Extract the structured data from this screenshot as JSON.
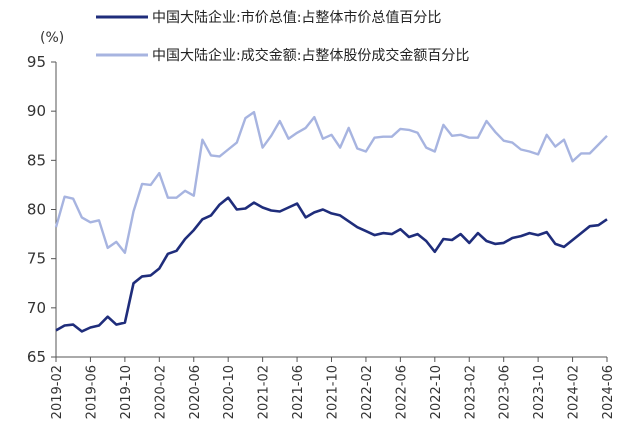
{
  "chart_data": {
    "type": "line",
    "y_unit_label": "(%)",
    "ylim": [
      65,
      95
    ],
    "y_ticks": [
      65,
      70,
      75,
      80,
      85,
      90,
      95
    ],
    "grid": false,
    "legend_position": "top-left",
    "x_start": "2019-02",
    "x_end": "2024-06",
    "x_tick_labels": [
      "2019-02",
      "2019-06",
      "2019-10",
      "2020-02",
      "2020-06",
      "2020-10",
      "2021-02",
      "2021-06",
      "2021-10",
      "2022-02",
      "2022-06",
      "2022-10",
      "2023-02",
      "2023-06",
      "2023-10",
      "2024-02",
      "2024-06"
    ],
    "series": [
      {
        "name": "中国大陆企业:市价总值:占整体市价总值百分比",
        "color": "#1f2d7b",
        "values": [
          67.7,
          68.2,
          68.3,
          67.6,
          68.0,
          68.2,
          69.1,
          68.3,
          68.5,
          72.5,
          73.2,
          73.3,
          74.0,
          75.5,
          75.8,
          77.0,
          77.9,
          79.0,
          79.4,
          80.5,
          81.2,
          80.0,
          80.1,
          80.7,
          80.2,
          79.9,
          79.8,
          80.2,
          80.6,
          79.2,
          79.7,
          80.0,
          79.6,
          79.4,
          78.8,
          78.2,
          77.8,
          77.4,
          77.6,
          77.5,
          78.0,
          77.2,
          77.5,
          76.8,
          75.7,
          77.0,
          76.9,
          77.5,
          76.6,
          77.6,
          76.8,
          76.5,
          76.6,
          77.1,
          77.3,
          77.6,
          77.4,
          77.7,
          76.5,
          76.2,
          76.9,
          77.6,
          78.3,
          78.4,
          79.0
        ]
      },
      {
        "name": "中国大陆企业:成交金额:占整体股份成交金额百分比",
        "color": "#a7b4e0",
        "values": [
          78.2,
          81.3,
          81.1,
          79.2,
          78.7,
          78.9,
          76.1,
          76.7,
          75.6,
          79.8,
          82.6,
          82.5,
          83.7,
          81.2,
          81.2,
          81.9,
          81.4,
          87.1,
          85.5,
          85.4,
          86.1,
          86.8,
          89.3,
          89.9,
          86.3,
          87.5,
          89.0,
          87.2,
          87.8,
          88.3,
          89.4,
          87.2,
          87.6,
          86.3,
          88.3,
          86.2,
          85.9,
          87.3,
          87.4,
          87.4,
          88.2,
          88.1,
          87.8,
          86.3,
          85.9,
          88.6,
          87.5,
          87.6,
          87.3,
          87.3,
          89.0,
          87.9,
          87.0,
          86.8,
          86.1,
          85.9,
          85.6,
          87.6,
          86.4,
          87.1,
          84.9,
          85.7,
          85.7,
          86.6,
          87.5
        ]
      }
    ]
  }
}
